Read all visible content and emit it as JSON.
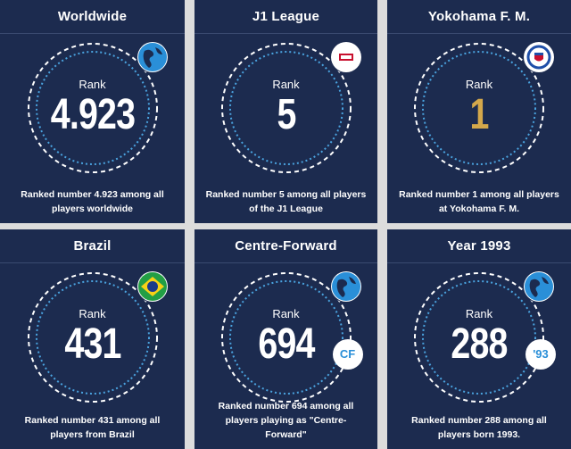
{
  "cards": [
    {
      "title": "Worldwide",
      "rank_label": "Rank",
      "rank": "4.923",
      "desc": "Ranked number 4.923 among all players worldwide",
      "badge": "globe-icon",
      "gold": false
    },
    {
      "title": "J1 League",
      "rank_label": "Rank",
      "rank": "5",
      "desc": "Ranked number 5 among all players of the J1 League",
      "badge": "league-logo-icon",
      "gold": false
    },
    {
      "title": "Yokohama F. M.",
      "rank_label": "Rank",
      "rank": "1",
      "desc": "Ranked number 1 among all players at Yokohama F. M.",
      "badge": "club-crest-icon",
      "gold": true
    },
    {
      "title": "Brazil",
      "rank_label": "Rank",
      "rank": "431",
      "desc": "Ranked number 431 among all players from Brazil",
      "badge": "brazil-flag-icon",
      "gold": false
    },
    {
      "title": "Centre-Forward",
      "rank_label": "Rank",
      "rank": "694",
      "desc": "Ranked number 694 among all players playing as \"Centre-Forward\"",
      "badge": "globe-icon",
      "tag": "CF",
      "gold": false
    },
    {
      "title": "Year 1993",
      "rank_label": "Rank",
      "rank": "288",
      "desc": "Ranked number 288 among all players born 1993.",
      "badge": "globe-icon",
      "tag": "'93",
      "gold": false
    }
  ],
  "colors": {
    "card_bg": "#1c2b4f",
    "ring": "#ffffff",
    "ring_inner": "#4aa3df",
    "gold": "#d4a84b",
    "badge_text": "#2a8fd8"
  }
}
